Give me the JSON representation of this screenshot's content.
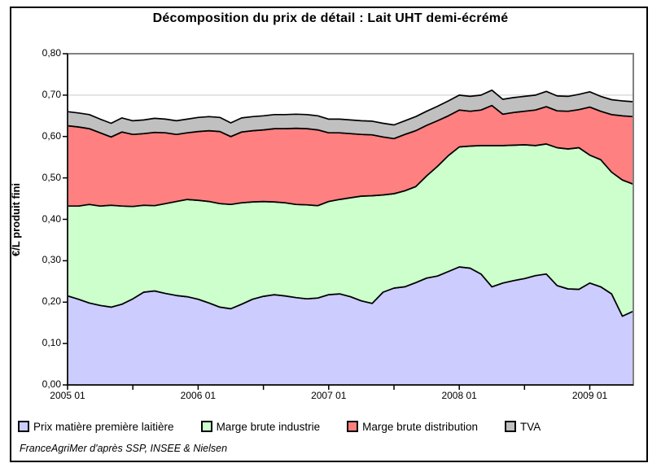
{
  "page": {
    "source_note": "FranceAgriMer d'après SSP, INSEE & Nielsen"
  },
  "chart_data": {
    "type": "area",
    "stacked": true,
    "title": "Décomposition du prix de détail : Lait UHT demi-écrémé",
    "xlabel": "",
    "ylabel": "€/L produit fini",
    "ylim": [
      0,
      0.8
    ],
    "ytick_step": 0.1,
    "ytick_labels": [
      "0,00",
      "0,10",
      "0,20",
      "0,30",
      "0,40",
      "0,50",
      "0,60",
      "0,70",
      "0,80"
    ],
    "grid": "horizontal",
    "legend_position": "bottom",
    "xtick_positions": [
      0,
      12,
      24,
      36,
      48
    ],
    "x_months": [
      "2005 01",
      "2005 02",
      "2005 03",
      "2005 04",
      "2005 05",
      "2005 06",
      "2005 07",
      "2005 08",
      "2005 09",
      "2005 10",
      "2005 11",
      "2005 12",
      "2006 01",
      "2006 02",
      "2006 03",
      "2006 04",
      "2006 05",
      "2006 06",
      "2006 07",
      "2006 08",
      "2006 09",
      "2006 10",
      "2006 11",
      "2006 12",
      "2007 01",
      "2007 02",
      "2007 03",
      "2007 04",
      "2007 05",
      "2007 06",
      "2007 07",
      "2007 08",
      "2007 09",
      "2007 10",
      "2007 11",
      "2007 12",
      "2008 01",
      "2008 02",
      "2008 03",
      "2008 04",
      "2008 05",
      "2008 06",
      "2008 07",
      "2008 08",
      "2008 09",
      "2008 10",
      "2008 11",
      "2008 12",
      "2009 01",
      "2009 02",
      "2009 03",
      "2009 04",
      "2009 05"
    ],
    "series": [
      {
        "id": "prix-matiere-premiere-laitiere",
        "name": "Prix matière première laitière",
        "color": "#CCCCFF",
        "values": [
          0.215,
          0.207,
          0.198,
          0.192,
          0.188,
          0.195,
          0.208,
          0.224,
          0.227,
          0.221,
          0.216,
          0.213,
          0.207,
          0.198,
          0.188,
          0.184,
          0.195,
          0.207,
          0.214,
          0.218,
          0.215,
          0.211,
          0.208,
          0.21,
          0.218,
          0.22,
          0.213,
          0.203,
          0.197,
          0.224,
          0.234,
          0.237,
          0.247,
          0.258,
          0.263,
          0.274,
          0.285,
          0.282,
          0.268,
          0.237,
          0.246,
          0.252,
          0.257,
          0.264,
          0.268,
          0.24,
          0.232,
          0.231,
          0.246,
          0.237,
          0.22,
          0.166,
          0.178
        ]
      },
      {
        "id": "marge-brute-industrie",
        "name": "Marge brute industrie",
        "color": "#CCFFCC",
        "values": [
          0.217,
          0.225,
          0.238,
          0.24,
          0.246,
          0.237,
          0.223,
          0.21,
          0.206,
          0.217,
          0.227,
          0.235,
          0.239,
          0.245,
          0.25,
          0.252,
          0.245,
          0.235,
          0.229,
          0.224,
          0.225,
          0.225,
          0.227,
          0.223,
          0.225,
          0.228,
          0.239,
          0.253,
          0.26,
          0.235,
          0.228,
          0.232,
          0.232,
          0.247,
          0.265,
          0.28,
          0.29,
          0.295,
          0.31,
          0.341,
          0.332,
          0.327,
          0.323,
          0.314,
          0.314,
          0.333,
          0.338,
          0.342,
          0.309,
          0.307,
          0.294,
          0.329,
          0.307
        ]
      },
      {
        "id": "marge-brute-distribution",
        "name": "Marge brute distribution",
        "color": "#FF8080",
        "values": [
          0.194,
          0.191,
          0.183,
          0.177,
          0.165,
          0.179,
          0.174,
          0.173,
          0.177,
          0.171,
          0.162,
          0.161,
          0.166,
          0.171,
          0.174,
          0.164,
          0.171,
          0.172,
          0.173,
          0.177,
          0.179,
          0.184,
          0.184,
          0.183,
          0.166,
          0.161,
          0.155,
          0.149,
          0.147,
          0.14,
          0.133,
          0.136,
          0.135,
          0.122,
          0.11,
          0.096,
          0.089,
          0.084,
          0.086,
          0.097,
          0.076,
          0.079,
          0.081,
          0.086,
          0.09,
          0.089,
          0.091,
          0.092,
          0.116,
          0.117,
          0.139,
          0.155,
          0.163
        ]
      },
      {
        "id": "tva",
        "name": "TVA",
        "color": "#C0C0C0",
        "values": [
          0.034,
          0.034,
          0.034,
          0.033,
          0.033,
          0.034,
          0.033,
          0.033,
          0.034,
          0.033,
          0.033,
          0.033,
          0.034,
          0.034,
          0.034,
          0.033,
          0.034,
          0.034,
          0.034,
          0.034,
          0.034,
          0.034,
          0.034,
          0.034,
          0.033,
          0.033,
          0.033,
          0.033,
          0.033,
          0.033,
          0.033,
          0.033,
          0.034,
          0.034,
          0.035,
          0.036,
          0.036,
          0.036,
          0.036,
          0.037,
          0.036,
          0.036,
          0.036,
          0.036,
          0.037,
          0.036,
          0.036,
          0.037,
          0.037,
          0.036,
          0.036,
          0.036,
          0.036
        ]
      }
    ]
  }
}
